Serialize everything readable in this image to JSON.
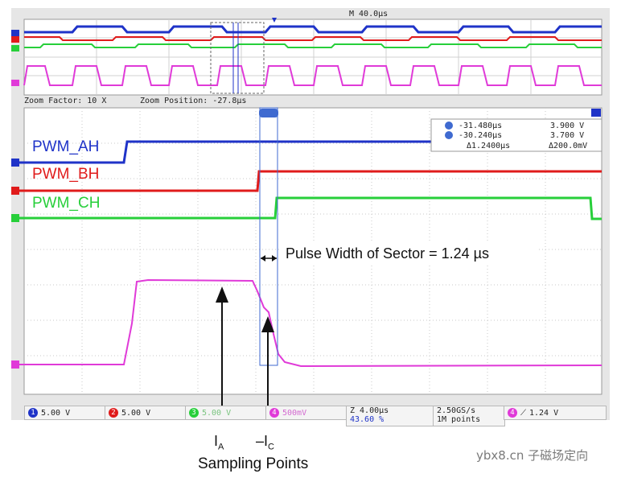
{
  "header": {
    "timebase": "M 40.0µs"
  },
  "zoom_bar": {
    "factor": "Zoom Factor: 10 X",
    "position": "Zoom Position: -27.8µs"
  },
  "channels": {
    "ah": {
      "label": "PWM_AH",
      "color": "#1f33c8"
    },
    "bh": {
      "label": "PWM_BH",
      "color": "#e01b1b"
    },
    "ch": {
      "label": "PWM_CH",
      "color": "#27cf3a"
    },
    "current": {
      "color": "#e03ad8"
    }
  },
  "cursor_readout": {
    "a_time": "-31.480µs",
    "a_value": "3.900 V",
    "b_time": "-30.240µs",
    "b_value": "3.700 V",
    "delta_time": "Δ1.2400µs",
    "delta_value": "Δ200.0mV"
  },
  "pulse_note": "Pulse Width of Sector = 1.24 µs",
  "status_bar": {
    "ch1": {
      "num": "1",
      "value": "5.00 V"
    },
    "ch2": {
      "num": "2",
      "value": "5.00 V"
    },
    "ch3": {
      "num": "3",
      "value": "5.00 V"
    },
    "ch4": {
      "num": "4",
      "value": "500mV"
    },
    "timebase": "Z 4.00µs",
    "trigger_pos": "43.60 %",
    "sample_rate": "2.50GS/s",
    "record": "1M points",
    "trigger_level": "1.24 V"
  },
  "annotations": {
    "ia": "I",
    "ia_sub": "A",
    "ic": "–I",
    "ic_sub": "C",
    "sampling": "Sampling Points"
  },
  "watermark": "ybx8.cn 子磁场定向"
}
